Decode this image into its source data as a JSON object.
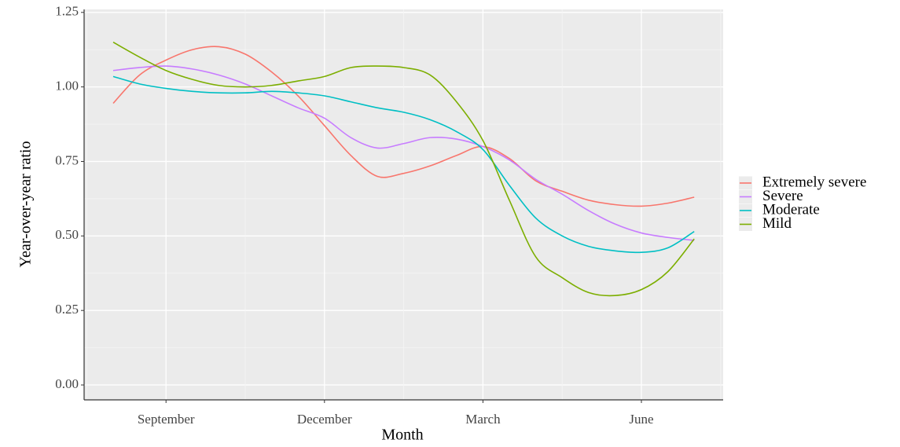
{
  "chart_data": {
    "type": "line",
    "x_label": "Month",
    "y_label": "Year-over-year ratio",
    "categories": [
      null,
      null,
      "September",
      null,
      null,
      null,
      null,
      null,
      "December",
      null,
      null,
      null,
      null,
      null,
      "March",
      null,
      null,
      null,
      null,
      null,
      "June",
      null,
      null
    ],
    "ylim": [
      -0.05,
      1.26
    ],
    "yticks": [
      {
        "value": 0,
        "label": "0.00"
      },
      {
        "value": 0.25,
        "label": "0.25"
      },
      {
        "value": 0.5,
        "label": "0.50"
      },
      {
        "value": 0.75,
        "label": "0.75"
      },
      {
        "value": 1,
        "label": "1.00"
      },
      {
        "value": 1.25,
        "label": "1.25"
      }
    ],
    "grid": true,
    "legend": "right",
    "series": [
      {
        "name": "Extremely severe",
        "color": "#F8766D",
        "values": [
          0.945,
          1.04,
          1.09,
          1.125,
          1.135,
          1.11,
          1.05,
          0.97,
          0.87,
          0.77,
          0.7,
          0.71,
          0.735,
          0.77,
          0.8,
          0.76,
          0.685,
          0.65,
          0.62,
          0.605,
          0.6,
          0.61,
          0.63
        ]
      },
      {
        "name": "Severe",
        "color": "#C77CFF",
        "values": [
          1.055,
          1.065,
          1.07,
          1.06,
          1.04,
          1.01,
          0.97,
          0.93,
          0.895,
          0.83,
          0.795,
          0.81,
          0.83,
          0.825,
          0.8,
          0.755,
          0.69,
          0.64,
          0.585,
          0.54,
          0.51,
          0.495,
          0.485
        ]
      },
      {
        "name": "Moderate",
        "color": "#00BFC4",
        "values": [
          1.035,
          1.01,
          0.995,
          0.985,
          0.98,
          0.98,
          0.985,
          0.98,
          0.97,
          0.95,
          0.93,
          0.915,
          0.89,
          0.85,
          0.79,
          0.67,
          0.56,
          0.5,
          0.465,
          0.45,
          0.445,
          0.46,
          0.515
        ]
      },
      {
        "name": "Mild",
        "color": "#7CAE00",
        "values": [
          1.15,
          1.1,
          1.055,
          1.025,
          1.005,
          1.0,
          1.005,
          1.02,
          1.035,
          1.065,
          1.07,
          1.065,
          1.04,
          0.95,
          0.82,
          0.62,
          0.43,
          0.36,
          0.31,
          0.3,
          0.32,
          0.38,
          0.49
        ]
      }
    ]
  }
}
